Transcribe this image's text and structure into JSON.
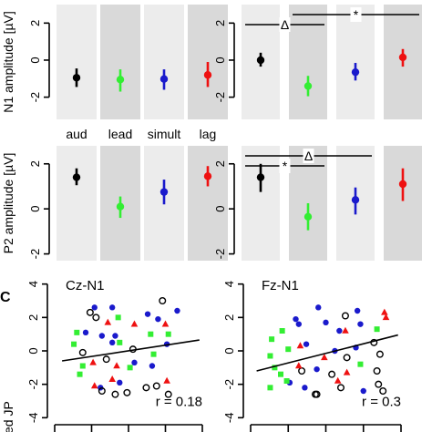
{
  "chart_data": [
    {
      "type": "scatter",
      "ylabel": "N1 amplitude [µV]",
      "yticklabels": [
        "-2",
        "0",
        "2"
      ],
      "ylim": [
        -3.2,
        3.0
      ],
      "condition_labels": [
        "aud",
        "lead",
        "simult",
        "lag"
      ],
      "panels": [
        {
          "id": "cz-n1",
          "points": [
            {
              "condition": "aud",
              "mean": -0.95,
              "lower": -1.45,
              "upper": -0.45,
              "color": "#000000"
            },
            {
              "condition": "lead",
              "mean": -1.05,
              "lower": -1.7,
              "upper": -0.5,
              "color": "#33ee33"
            },
            {
              "condition": "simult",
              "mean": -1.02,
              "lower": -1.6,
              "upper": -0.5,
              "color": "#1a1acc"
            },
            {
              "condition": "lag",
              "mean": -0.8,
              "lower": -1.45,
              "upper": -0.1,
              "color": "#ee1111"
            }
          ]
        },
        {
          "id": "fz-n1",
          "points": [
            {
              "condition": "aud",
              "mean": 0.0,
              "lower": -0.35,
              "upper": 0.4,
              "color": "#000000"
            },
            {
              "condition": "lead",
              "mean": -1.4,
              "lower": -1.95,
              "upper": -0.85,
              "color": "#33ee33"
            },
            {
              "condition": "simult",
              "mean": -0.65,
              "lower": -1.1,
              "upper": -0.15,
              "color": "#1a1acc"
            },
            {
              "condition": "lag",
              "mean": 0.15,
              "lower": -0.35,
              "upper": 0.6,
              "color": "#ee1111"
            }
          ],
          "annotations": [
            {
              "symbol": "Δ",
              "from": "aud",
              "to": "lead",
              "level": 1
            },
            {
              "symbol": "*",
              "from": "lead",
              "to": "lag",
              "level": 2
            }
          ]
        }
      ]
    },
    {
      "type": "scatter",
      "ylabel": "P2 amplitude [µV]",
      "yticklabels": [
        "-2",
        "0",
        "2"
      ],
      "ylim": [
        -2.3,
        2.8
      ],
      "panels": [
        {
          "id": "cz-p2",
          "points": [
            {
              "condition": "aud",
              "mean": 1.4,
              "lower": 1.05,
              "upper": 1.8,
              "color": "#000000"
            },
            {
              "condition": "lead",
              "mean": 0.1,
              "lower": -0.4,
              "upper": 0.55,
              "color": "#33ee33"
            },
            {
              "condition": "simult",
              "mean": 0.75,
              "lower": 0.2,
              "upper": 1.3,
              "color": "#1a1acc"
            },
            {
              "condition": "lag",
              "mean": 1.45,
              "lower": 1.0,
              "upper": 1.9,
              "color": "#ee1111"
            }
          ]
        },
        {
          "id": "fz-p2",
          "points": [
            {
              "condition": "aud",
              "mean": 1.4,
              "lower": 0.75,
              "upper": 2.0,
              "color": "#000000"
            },
            {
              "condition": "lead",
              "mean": -0.35,
              "lower": -0.95,
              "upper": 0.25,
              "color": "#33ee33"
            },
            {
              "condition": "simult",
              "mean": 0.4,
              "lower": -0.25,
              "upper": 0.95,
              "color": "#1a1acc"
            },
            {
              "condition": "lag",
              "mean": 1.1,
              "lower": 0.35,
              "upper": 1.8,
              "color": "#ee1111"
            }
          ],
          "annotations": [
            {
              "symbol": "*",
              "from": "aud",
              "to": "lead",
              "level": 1
            },
            {
              "symbol": "Δ",
              "from": "aud",
              "to": "simult",
              "level": 2
            }
          ]
        }
      ]
    },
    {
      "type": "scatter",
      "panel_letter": "C",
      "ylabel": "ned JP",
      "yticklabels": [
        "-4",
        "-2",
        "0",
        "2",
        "4"
      ],
      "ylim": [
        -4.2,
        4.2
      ],
      "xlim": [
        0,
        10
      ],
      "panels": [
        {
          "id": "cz-n1-scatter",
          "title": "Cz-N1",
          "annotation": "r = 0.18",
          "regression": {
            "x": [
              0.5,
              9.8
            ],
            "y": [
              -0.6,
              0.65
            ]
          },
          "points": [
            {
              "x": 2.7,
              "y": 2.6,
              "marker": "circle",
              "color": "#1a1acc"
            },
            {
              "x": 4.1,
              "y": 0.9,
              "marker": "circle",
              "color": "#1a1acc"
            },
            {
              "x": 3.9,
              "y": 0.5,
              "marker": "circle",
              "color": "#1a1acc"
            },
            {
              "x": 6.3,
              "y": 2.2,
              "marker": "circle",
              "color": "#1a1acc"
            },
            {
              "x": 7.0,
              "y": 1.9,
              "marker": "circle",
              "color": "#1a1acc"
            },
            {
              "x": 5.4,
              "y": -0.7,
              "marker": "circle",
              "color": "#1a1acc"
            },
            {
              "x": 6.6,
              "y": -0.9,
              "marker": "circle",
              "color": "#1a1acc"
            },
            {
              "x": 7.6,
              "y": 0.4,
              "marker": "circle",
              "color": "#1a1acc"
            },
            {
              "x": 4.4,
              "y": -1.9,
              "marker": "circle",
              "color": "#1a1acc"
            },
            {
              "x": 3.2,
              "y": 0.9,
              "marker": "circle",
              "color": "#1a1acc"
            },
            {
              "x": 3.9,
              "y": 2.6,
              "marker": "circle",
              "color": "#1a1acc"
            },
            {
              "x": 8.3,
              "y": 2.4,
              "marker": "circle",
              "color": "#1a1acc"
            },
            {
              "x": 2.1,
              "y": 1.1,
              "marker": "circle",
              "color": "#1a1acc"
            },
            {
              "x": 3.1,
              "y": -2.2,
              "marker": "circle",
              "color": "#1a1acc"
            },
            {
              "x": 2.4,
              "y": 2.3,
              "marker": "open-circle",
              "color": "#000000"
            },
            {
              "x": 2.8,
              "y": 2.0,
              "marker": "open-circle",
              "color": "#000000"
            },
            {
              "x": 1.9,
              "y": -0.1,
              "marker": "open-circle",
              "color": "#000000"
            },
            {
              "x": 7.3,
              "y": 3.0,
              "marker": "open-circle",
              "color": "#000000"
            },
            {
              "x": 3.5,
              "y": -0.5,
              "marker": "open-circle",
              "color": "#000000"
            },
            {
              "x": 5.3,
              "y": 0.1,
              "marker": "open-circle",
              "color": "#000000"
            },
            {
              "x": 6.9,
              "y": -2.1,
              "marker": "open-circle",
              "color": "#000000"
            },
            {
              "x": 7.7,
              "y": -2.6,
              "marker": "open-circle",
              "color": "#000000"
            },
            {
              "x": 3.2,
              "y": -2.4,
              "marker": "open-circle",
              "color": "#000000"
            },
            {
              "x": 4.9,
              "y": -2.5,
              "marker": "open-circle",
              "color": "#000000"
            },
            {
              "x": 4.1,
              "y": -2.6,
              "marker": "open-circle",
              "color": "#000000"
            },
            {
              "x": 6.2,
              "y": -2.2,
              "marker": "open-circle",
              "color": "#000000"
            },
            {
              "x": 3.6,
              "y": 1.7,
              "marker": "triangle",
              "color": "#ee1111"
            },
            {
              "x": 5.4,
              "y": 1.6,
              "marker": "triangle",
              "color": "#ee1111"
            },
            {
              "x": 7.5,
              "y": 1.6,
              "marker": "triangle",
              "color": "#ee1111"
            },
            {
              "x": 4.2,
              "y": -0.9,
              "marker": "triangle",
              "color": "#ee1111"
            },
            {
              "x": 2.6,
              "y": -0.7,
              "marker": "triangle",
              "color": "#ee1111"
            },
            {
              "x": 3.9,
              "y": -1.7,
              "marker": "triangle",
              "color": "#ee1111"
            },
            {
              "x": 7.6,
              "y": -1.8,
              "marker": "triangle",
              "color": "#ee1111"
            },
            {
              "x": 2.7,
              "y": -2.1,
              "marker": "triangle",
              "color": "#ee1111"
            },
            {
              "x": 1.5,
              "y": 1.1,
              "marker": "square",
              "color": "#33ee33"
            },
            {
              "x": 4.3,
              "y": 2.0,
              "marker": "square",
              "color": "#33ee33"
            },
            {
              "x": 4.4,
              "y": 0.5,
              "marker": "square",
              "color": "#33ee33"
            },
            {
              "x": 7.7,
              "y": 1.0,
              "marker": "square",
              "color": "#33ee33"
            },
            {
              "x": 6.5,
              "y": 1.0,
              "marker": "square",
              "color": "#33ee33"
            },
            {
              "x": 1.3,
              "y": 0.4,
              "marker": "square",
              "color": "#33ee33"
            },
            {
              "x": 6.7,
              "y": -0.2,
              "marker": "square",
              "color": "#33ee33"
            },
            {
              "x": 1.7,
              "y": -1.4,
              "marker": "square",
              "color": "#33ee33"
            },
            {
              "x": 1.9,
              "y": -0.9,
              "marker": "square",
              "color": "#33ee33"
            },
            {
              "x": 5.1,
              "y": -1.0,
              "marker": "square",
              "color": "#33ee33"
            }
          ]
        },
        {
          "id": "fz-n1-scatter",
          "title": "Fz-N1",
          "annotation": "r = 0.3",
          "regression": {
            "x": [
              0.4,
              9.8
            ],
            "y": [
              -1.2,
              0.95
            ]
          },
          "points": [
            {
              "x": 4.5,
              "y": 2.6,
              "marker": "circle",
              "color": "#1a1acc"
            },
            {
              "x": 5.0,
              "y": 1.7,
              "marker": "circle",
              "color": "#1a1acc"
            },
            {
              "x": 3.0,
              "y": 1.9,
              "marker": "circle",
              "color": "#1a1acc"
            },
            {
              "x": 3.7,
              "y": 0.4,
              "marker": "circle",
              "color": "#1a1acc"
            },
            {
              "x": 7.1,
              "y": 2.4,
              "marker": "circle",
              "color": "#1a1acc"
            },
            {
              "x": 5.9,
              "y": 1.2,
              "marker": "circle",
              "color": "#1a1acc"
            },
            {
              "x": 7.3,
              "y": 1.6,
              "marker": "circle",
              "color": "#1a1acc"
            },
            {
              "x": 3.2,
              "y": 1.6,
              "marker": "circle",
              "color": "#1a1acc"
            },
            {
              "x": 5.6,
              "y": 0.0,
              "marker": "circle",
              "color": "#1a1acc"
            },
            {
              "x": 4.4,
              "y": -1.1,
              "marker": "circle",
              "color": "#1a1acc"
            },
            {
              "x": 7.0,
              "y": 0.2,
              "marker": "circle",
              "color": "#1a1acc"
            },
            {
              "x": 2.6,
              "y": -1.9,
              "marker": "circle",
              "color": "#1a1acc"
            },
            {
              "x": 3.6,
              "y": -2.2,
              "marker": "circle",
              "color": "#1a1acc"
            },
            {
              "x": 7.5,
              "y": -2.4,
              "marker": "circle",
              "color": "#1a1acc"
            },
            {
              "x": 6.3,
              "y": 2.1,
              "marker": "open-circle",
              "color": "#000000"
            },
            {
              "x": 8.2,
              "y": 0.5,
              "marker": "open-circle",
              "color": "#000000"
            },
            {
              "x": 8.6,
              "y": -0.2,
              "marker": "open-circle",
              "color": "#000000"
            },
            {
              "x": 6.4,
              "y": -0.4,
              "marker": "open-circle",
              "color": "#000000"
            },
            {
              "x": 5.4,
              "y": -1.4,
              "marker": "open-circle",
              "color": "#000000"
            },
            {
              "x": 3.4,
              "y": -1.2,
              "marker": "open-circle",
              "color": "#000000"
            },
            {
              "x": 4.3,
              "y": -2.6,
              "marker": "open-circle",
              "color": "#000000"
            },
            {
              "x": 4.4,
              "y": -2.6,
              "marker": "open-circle",
              "color": "#000000"
            },
            {
              "x": 6.0,
              "y": -2.2,
              "marker": "open-circle",
              "color": "#000000"
            },
            {
              "x": 8.5,
              "y": -2.0,
              "marker": "open-circle",
              "color": "#000000"
            },
            {
              "x": 8.8,
              "y": -2.4,
              "marker": "open-circle",
              "color": "#000000"
            },
            {
              "x": 8.4,
              "y": -1.2,
              "marker": "open-circle",
              "color": "#000000"
            },
            {
              "x": 8.9,
              "y": 2.3,
              "marker": "triangle",
              "color": "#ee1111"
            },
            {
              "x": 9.0,
              "y": 2.0,
              "marker": "triangle",
              "color": "#ee1111"
            },
            {
              "x": 6.3,
              "y": 1.2,
              "marker": "triangle",
              "color": "#ee1111"
            },
            {
              "x": 3.3,
              "y": 0.3,
              "marker": "triangle",
              "color": "#ee1111"
            },
            {
              "x": 4.9,
              "y": -0.4,
              "marker": "triangle",
              "color": "#ee1111"
            },
            {
              "x": 6.4,
              "y": -1.3,
              "marker": "triangle",
              "color": "#ee1111"
            },
            {
              "x": 5.8,
              "y": -1.8,
              "marker": "triangle",
              "color": "#ee1111"
            },
            {
              "x": 3.2,
              "y": -0.9,
              "marker": "triangle",
              "color": "#ee1111"
            },
            {
              "x": 1.4,
              "y": 0.7,
              "marker": "square",
              "color": "#33ee33"
            },
            {
              "x": 1.3,
              "y": -0.3,
              "marker": "square",
              "color": "#33ee33"
            },
            {
              "x": 2.1,
              "y": 1.2,
              "marker": "square",
              "color": "#33ee33"
            },
            {
              "x": 2.5,
              "y": 0.1,
              "marker": "square",
              "color": "#33ee33"
            },
            {
              "x": 8.4,
              "y": 1.3,
              "marker": "square",
              "color": "#33ee33"
            },
            {
              "x": 1.6,
              "y": -1.0,
              "marker": "square",
              "color": "#33ee33"
            },
            {
              "x": 2.0,
              "y": -1.4,
              "marker": "square",
              "color": "#33ee33"
            },
            {
              "x": 1.3,
              "y": -2.2,
              "marker": "square",
              "color": "#33ee33"
            },
            {
              "x": 2.4,
              "y": -1.8,
              "marker": "square",
              "color": "#33ee33"
            },
            {
              "x": 7.3,
              "y": -0.8,
              "marker": "square",
              "color": "#33ee33"
            }
          ]
        }
      ]
    }
  ]
}
